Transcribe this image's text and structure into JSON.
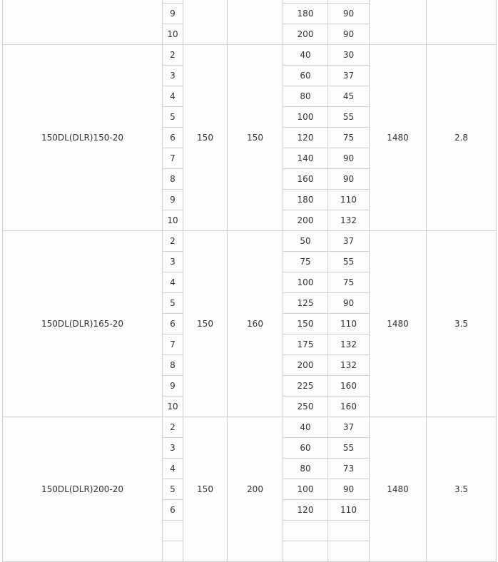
{
  "table": {
    "groups": [
      {
        "model": "",
        "a": "",
        "b": "",
        "speed": "",
        "c": "",
        "rows": [
          {
            "n": "",
            "flow": "",
            "power": ""
          },
          {
            "n": "9",
            "flow": "180",
            "power": "90"
          },
          {
            "n": "10",
            "flow": "200",
            "power": "90"
          }
        ]
      },
      {
        "model": "150DL(DLR)150-20",
        "a": "150",
        "b": "150",
        "speed": "1480",
        "c": "2.8",
        "rows": [
          {
            "n": "2",
            "flow": "40",
            "power": "30"
          },
          {
            "n": "3",
            "flow": "60",
            "power": "37"
          },
          {
            "n": "4",
            "flow": "80",
            "power": "45"
          },
          {
            "n": "5",
            "flow": "100",
            "power": "55"
          },
          {
            "n": "6",
            "flow": "120",
            "power": "75"
          },
          {
            "n": "7",
            "flow": "140",
            "power": "90"
          },
          {
            "n": "8",
            "flow": "160",
            "power": "90"
          },
          {
            "n": "9",
            "flow": "180",
            "power": "110"
          },
          {
            "n": "10",
            "flow": "200",
            "power": "132"
          }
        ]
      },
      {
        "model": "150DL(DLR)165-20",
        "a": "150",
        "b": "160",
        "speed": "1480",
        "c": "3.5",
        "rows": [
          {
            "n": "2",
            "flow": "50",
            "power": "37"
          },
          {
            "n": "3",
            "flow": "75",
            "power": "55"
          },
          {
            "n": "4",
            "flow": "100",
            "power": "75"
          },
          {
            "n": "5",
            "flow": "125",
            "power": "90"
          },
          {
            "n": "6",
            "flow": "150",
            "power": "110"
          },
          {
            "n": "7",
            "flow": "175",
            "power": "132"
          },
          {
            "n": "8",
            "flow": "200",
            "power": "132"
          },
          {
            "n": "9",
            "flow": "225",
            "power": "160"
          },
          {
            "n": "10",
            "flow": "250",
            "power": "160"
          }
        ]
      },
      {
        "model": "150DL(DLR)200-20",
        "a": "150",
        "b": "200",
        "speed": "1480",
        "c": "3.5",
        "rows": [
          {
            "n": "2",
            "flow": "40",
            "power": "37"
          },
          {
            "n": "3",
            "flow": "60",
            "power": "55"
          },
          {
            "n": "4",
            "flow": "80",
            "power": "73"
          },
          {
            "n": "5",
            "flow": "100",
            "power": "90"
          },
          {
            "n": "6",
            "flow": "120",
            "power": "110"
          },
          {
            "n": "",
            "flow": "",
            "power": ""
          },
          {
            "n": "",
            "flow": "",
            "power": ""
          }
        ]
      }
    ]
  }
}
